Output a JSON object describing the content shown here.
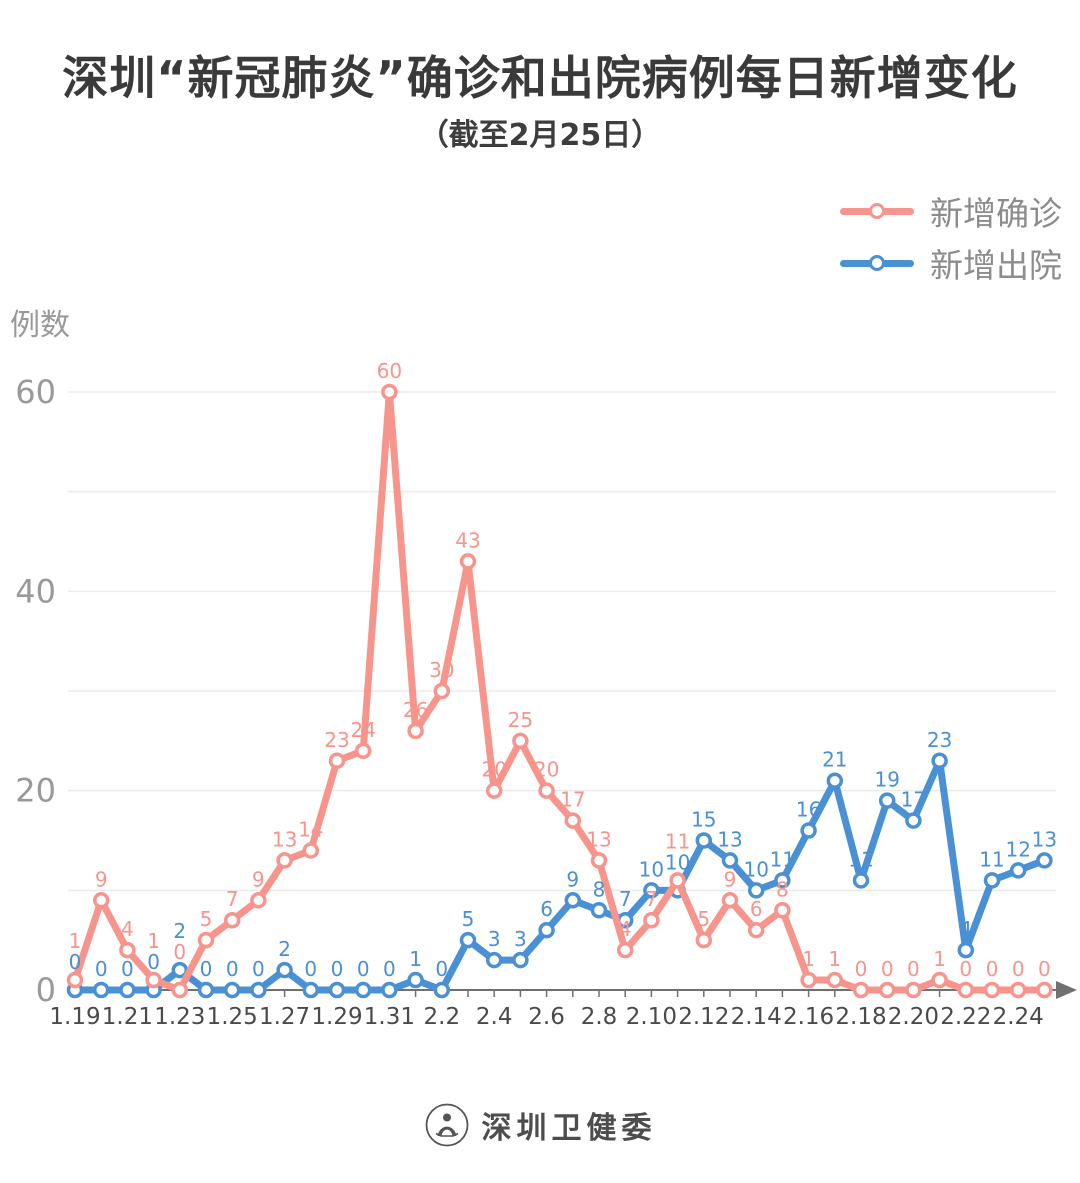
{
  "header": {
    "title": "深圳“新冠肺炎”确诊和出院病例每日新增变化",
    "subtitle": "（截至2月25日）"
  },
  "legend": {
    "position": "top-right",
    "items": [
      {
        "label": "新增确诊",
        "color": "#F7958D"
      },
      {
        "label": "新增出院",
        "color": "#4A90D5"
      }
    ]
  },
  "chart_data": {
    "type": "line",
    "title": "深圳“新冠肺炎”确诊和出院病例每日新增变化",
    "subtitle": "（截至2月25日）",
    "ylabel": "例数",
    "xlabel": "",
    "ylim": [
      0,
      60
    ],
    "yticks_labeled": [
      0,
      20,
      40,
      60
    ],
    "grid": true,
    "grid_interval": 10,
    "x_label_every": 2,
    "x": [
      "1.19",
      "1.20",
      "1.21",
      "1.22",
      "1.23",
      "1.24",
      "1.25",
      "1.26",
      "1.27",
      "1.28",
      "1.29",
      "1.30",
      "1.31",
      "2.1",
      "2.2",
      "2.3",
      "2.4",
      "2.5",
      "2.6",
      "2.7",
      "2.8",
      "2.9",
      "2.10",
      "2.11",
      "2.12",
      "2.13",
      "2.14",
      "2.15",
      "2.16",
      "2.17",
      "2.18",
      "2.19",
      "2.20",
      "2.21",
      "2.22",
      "2.23",
      "2.24",
      "2.25"
    ],
    "series": [
      {
        "name": "新增确诊",
        "color": "#F7958D",
        "values": [
          1,
          9,
          4,
          1,
          0,
          5,
          7,
          9,
          13,
          14,
          23,
          24,
          60,
          26,
          30,
          43,
          20,
          25,
          20,
          17,
          13,
          4,
          7,
          11,
          5,
          9,
          6,
          8,
          1,
          1,
          0,
          0,
          0,
          1,
          0,
          0,
          0,
          0
        ]
      },
      {
        "name": "新增出院",
        "color": "#4A90D5",
        "values": [
          0,
          0,
          0,
          0,
          2,
          0,
          0,
          0,
          2,
          0,
          0,
          0,
          0,
          1,
          0,
          5,
          3,
          3,
          6,
          9,
          8,
          7,
          10,
          10,
          15,
          13,
          10,
          11,
          16,
          21,
          11,
          19,
          17,
          23,
          4,
          11,
          12,
          13
        ]
      }
    ]
  },
  "colors": {
    "grid": "#EBEBEB",
    "axis": "#707070",
    "x_tick_label": "#4a4a4a",
    "y_tick_label": "#999999",
    "title_text": "#3a3a3a",
    "legend_text": "#8c8c8c"
  },
  "footer": {
    "org": "深圳卫健委"
  }
}
